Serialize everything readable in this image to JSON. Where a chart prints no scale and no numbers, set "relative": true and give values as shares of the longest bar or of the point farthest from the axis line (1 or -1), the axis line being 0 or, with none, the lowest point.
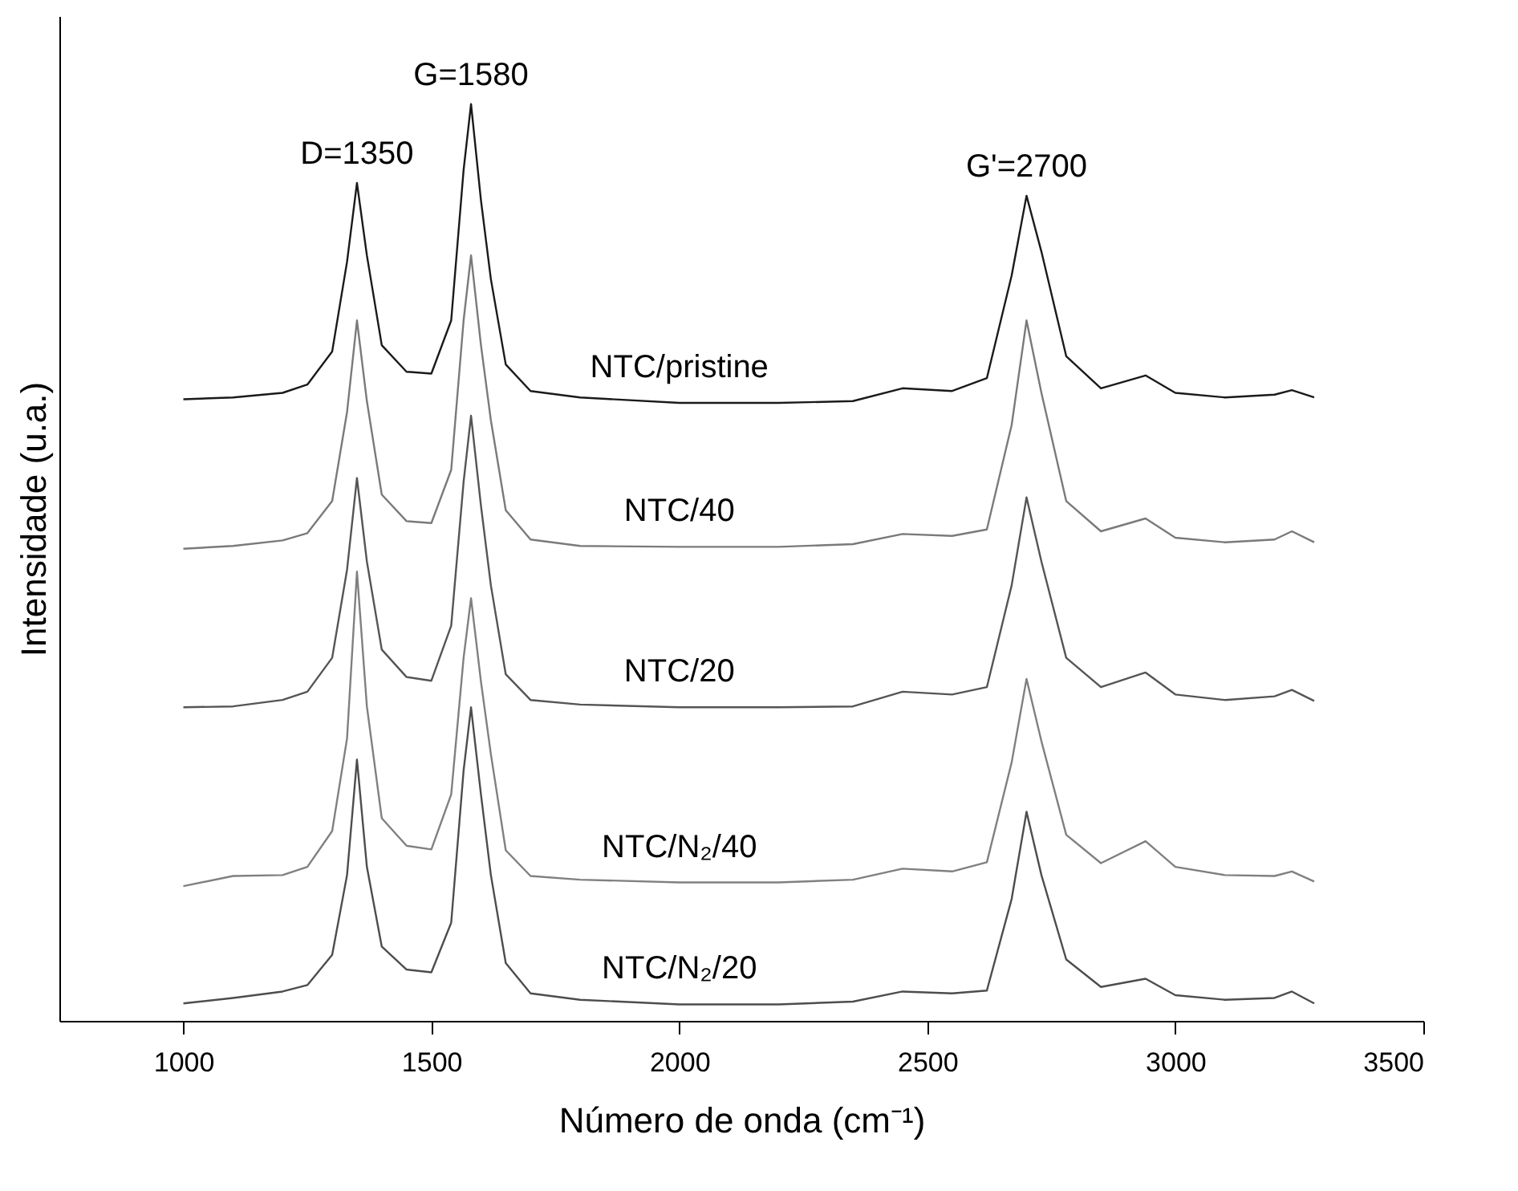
{
  "chart_data": {
    "type": "line",
    "relative": true,
    "xlabel": "Número de onda (cm⁻¹)",
    "ylabel": "Intensidade (u.a.)",
    "x": [
      1000,
      1100,
      1200,
      1250,
      1300,
      1330,
      1350,
      1370,
      1400,
      1450,
      1500,
      1540,
      1565,
      1580,
      1600,
      1620,
      1650,
      1700,
      1800,
      2000,
      2200,
      2350,
      2450,
      2550,
      2620,
      2670,
      2700,
      2730,
      2780,
      2850,
      2940,
      3000,
      3100,
      3200,
      3235,
      3280
    ],
    "xlim": [
      750,
      3500
    ],
    "xticks": [
      1000,
      1500,
      2000,
      2500,
      3000,
      3500
    ],
    "series": [
      {
        "name": "NTC/pristine",
        "color": "#1a1a1a",
        "values": [
          0.678,
          0.68,
          0.685,
          0.694,
          0.73,
          0.828,
          0.914,
          0.835,
          0.737,
          0.708,
          0.706,
          0.764,
          0.928,
          1,
          0.895,
          0.809,
          0.716,
          0.687,
          0.68,
          0.674,
          0.674,
          0.676,
          0.69,
          0.687,
          0.701,
          0.813,
          0.9,
          0.839,
          0.725,
          0.69,
          0.704,
          0.685,
          0.68,
          0.683,
          0.688,
          0.68
        ]
      },
      {
        "name": "NTC/40",
        "color": "#7a7a7a",
        "values": [
          0.515,
          0.518,
          0.524,
          0.532,
          0.567,
          0.664,
          0.764,
          0.676,
          0.574,
          0.545,
          0.543,
          0.601,
          0.764,
          0.835,
          0.737,
          0.655,
          0.557,
          0.525,
          0.518,
          0.517,
          0.517,
          0.52,
          0.531,
          0.529,
          0.536,
          0.65,
          0.764,
          0.685,
          0.567,
          0.534,
          0.548,
          0.527,
          0.522,
          0.525,
          0.534,
          0.522
        ]
      },
      {
        "name": "NTC/20",
        "color": "#555555",
        "values": [
          0.342,
          0.343,
          0.35,
          0.359,
          0.396,
          0.492,
          0.592,
          0.501,
          0.405,
          0.375,
          0.371,
          0.431,
          0.588,
          0.66,
          0.562,
          0.475,
          0.378,
          0.35,
          0.345,
          0.342,
          0.342,
          0.343,
          0.359,
          0.356,
          0.364,
          0.475,
          0.571,
          0.501,
          0.396,
          0.364,
          0.38,
          0.356,
          0.35,
          0.354,
          0.361,
          0.349
        ]
      },
      {
        "name": "NTC/N₂/40",
        "color": "#808080",
        "values": [
          0.147,
          0.158,
          0.159,
          0.168,
          0.207,
          0.308,
          0.49,
          0.343,
          0.221,
          0.191,
          0.187,
          0.247,
          0.396,
          0.461,
          0.37,
          0.291,
          0.186,
          0.158,
          0.154,
          0.151,
          0.151,
          0.154,
          0.166,
          0.163,
          0.173,
          0.282,
          0.373,
          0.305,
          0.203,
          0.172,
          0.196,
          0.168,
          0.159,
          0.158,
          0.163,
          0.152
        ]
      },
      {
        "name": "NTC/N₂/20",
        "color": "#4d4d4d",
        "values": [
          0.019,
          0.025,
          0.032,
          0.039,
          0.072,
          0.159,
          0.285,
          0.168,
          0.081,
          0.056,
          0.053,
          0.107,
          0.273,
          0.342,
          0.247,
          0.159,
          0.063,
          0.03,
          0.023,
          0.018,
          0.018,
          0.021,
          0.032,
          0.03,
          0.033,
          0.133,
          0.228,
          0.159,
          0.067,
          0.037,
          0.046,
          0.028,
          0.023,
          0.025,
          0.032,
          0.019
        ]
      }
    ],
    "annotations": [
      {
        "text": "D=1350",
        "x": 1350,
        "y": 0.914
      },
      {
        "text": "G=1580",
        "x": 1580,
        "y": 1
      },
      {
        "text": "G'=2700",
        "x": 2700,
        "y": 0.9
      }
    ],
    "grid": false,
    "legend": false,
    "marker": "none",
    "line_style": "solid"
  }
}
